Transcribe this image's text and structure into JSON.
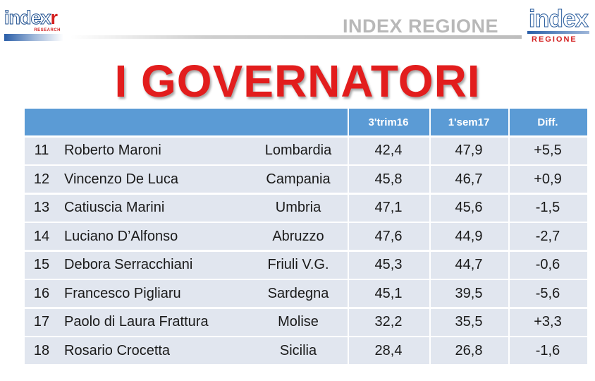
{
  "branding": {
    "left_logo_main": "index",
    "left_logo_accent": "r",
    "left_logo_sub": "RESEARCH",
    "header_label": "INDEX REGIONE",
    "right_logo_main": "index",
    "right_logo_sub": "REGIONE"
  },
  "title": "I GOVERNATORI",
  "table": {
    "columns": [
      "",
      "",
      "",
      "3'trim16",
      "1'sem17",
      "Diff."
    ],
    "rows": [
      {
        "rank": "11",
        "name": "Roberto Maroni",
        "region": "Lombardia",
        "q3_2016": "42,4",
        "s1_2017": "47,9",
        "diff": "+5,5"
      },
      {
        "rank": "12",
        "name": "Vincenzo De Luca",
        "region": "Campania",
        "q3_2016": "45,8",
        "s1_2017": "46,7",
        "diff": "+0,9"
      },
      {
        "rank": "13",
        "name": "Catiuscia Marini",
        "region": "Umbria",
        "q3_2016": "47,1",
        "s1_2017": "45,6",
        "diff": "-1,5"
      },
      {
        "rank": "14",
        "name": "Luciano D’Alfonso",
        "region": "Abruzzo",
        "q3_2016": "47,6",
        "s1_2017": "44,9",
        "diff": "-2,7"
      },
      {
        "rank": "15",
        "name": "Debora Serracchiani",
        "region": "Friuli V.G.",
        "q3_2016": "45,3",
        "s1_2017": "44,7",
        "diff": "-0,6"
      },
      {
        "rank": "16",
        "name": "Francesco Pigliaru",
        "region": "Sardegna",
        "q3_2016": "45,1",
        "s1_2017": "39,5",
        "diff": "-5,6"
      },
      {
        "rank": "17",
        "name": "Paolo di Laura Frattura",
        "region": "Molise",
        "q3_2016": "32,2",
        "s1_2017": "35,5",
        "diff": "+3,3"
      },
      {
        "rank": "18",
        "name": "Rosario Crocetta",
        "region": "Sicilia",
        "q3_2016": "28,4",
        "s1_2017": "26,8",
        "diff": "-1,6"
      }
    ]
  },
  "colors": {
    "header_blue": "#5b9bd5",
    "row_fill": "#e1e6ef",
    "title_red": "#e21d1d"
  }
}
